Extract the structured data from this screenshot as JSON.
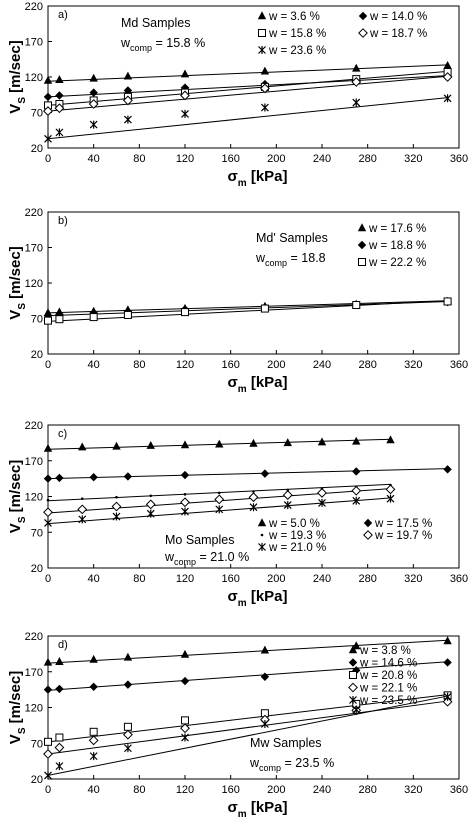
{
  "chart_data": [
    {
      "type": "line",
      "panel_label": "a)",
      "annotation": "Md Samples",
      "wcomp": {
        "base": "w",
        "sub": "comp",
        "rest": " = 15.8 %"
      },
      "xlabel": {
        "base": "σ",
        "sub": "m",
        "rest": " [kPa]"
      },
      "ylabel": {
        "base": "V",
        "sub": "S",
        "rest": " [m/sec]"
      },
      "xlim": [
        0,
        360
      ],
      "ylim": [
        20,
        220
      ],
      "xticks": [
        0,
        40,
        80,
        120,
        160,
        200,
        240,
        280,
        320,
        360
      ],
      "yticks": [
        20,
        70,
        120,
        170,
        220
      ],
      "grid": false,
      "legend": [
        {
          "label": "w = 3.6 %",
          "series": 0,
          "col": 0,
          "row": 0
        },
        {
          "label": "w = 14.0 %",
          "series": 1,
          "col": 1,
          "row": 0
        },
        {
          "label": "w = 15.8 %",
          "series": 2,
          "col": 0,
          "row": 1
        },
        {
          "label": "w = 18.7 %",
          "series": 3,
          "col": 1,
          "row": 1
        },
        {
          "label": "w = 23.6 %",
          "series": 4,
          "col": 0,
          "row": 2
        }
      ],
      "series": [
        {
          "name": "w = 3.6 %",
          "marker": "triangle",
          "x": [
            0,
            10,
            40,
            70,
            120,
            190,
            270,
            350
          ],
          "y": [
            115,
            116,
            118,
            121,
            124,
            128,
            132,
            136
          ],
          "fit_y": [
            114,
            137
          ]
        },
        {
          "name": "w = 14.0 %",
          "marker": "diamond",
          "x": [
            0,
            10,
            40,
            70,
            120,
            190,
            270,
            350
          ],
          "y": [
            92,
            94,
            98,
            101,
            105,
            110,
            116,
            121
          ],
          "fit_y": [
            92,
            122
          ]
        },
        {
          "name": "w = 15.8 %",
          "marker": "square",
          "x": [
            0,
            10,
            40,
            70,
            120,
            190,
            270,
            350
          ],
          "y": [
            80,
            82,
            87,
            92,
            98,
            106,
            117,
            127
          ],
          "fit_y": [
            80,
            128
          ]
        },
        {
          "name": "w = 18.7 %",
          "marker": "diamond-open",
          "x": [
            0,
            10,
            40,
            70,
            120,
            190,
            270,
            350
          ],
          "y": [
            72,
            76,
            82,
            87,
            94,
            104,
            113,
            120
          ],
          "fit_y": [
            72,
            121
          ]
        },
        {
          "name": "w = 23.6 %",
          "marker": "star",
          "x": [
            0,
            10,
            40,
            70,
            120,
            190,
            270,
            350
          ],
          "y": [
            33,
            42,
            53,
            60,
            68,
            77,
            84,
            90
          ],
          "fit_y": [
            33,
            91
          ]
        }
      ]
    },
    {
      "type": "line",
      "panel_label": "b)",
      "annotation": "Md' Samples",
      "wcomp": {
        "base": "w",
        "sub": "comp",
        "rest": " = 18.8"
      },
      "xlabel": {
        "base": "σ",
        "sub": "m",
        "rest": " [kPa]"
      },
      "ylabel": {
        "base": "V",
        "sub": "S",
        "rest": " [m/sec]"
      },
      "xlim": [
        0,
        360
      ],
      "ylim": [
        20,
        220
      ],
      "xticks": [
        0,
        40,
        80,
        120,
        160,
        200,
        240,
        280,
        320,
        360
      ],
      "yticks": [
        20,
        70,
        120,
        170,
        220
      ],
      "grid": false,
      "legend": [
        {
          "label": "w = 17.6 %",
          "series": 0,
          "col": 0,
          "row": 0
        },
        {
          "label": "w = 18.8 %",
          "series": 1,
          "col": 0,
          "row": 1
        },
        {
          "label": "w = 22.2 %",
          "series": 2,
          "col": 0,
          "row": 2
        }
      ],
      "series": [
        {
          "name": "w = 17.6 %",
          "marker": "triangle",
          "x": [
            0,
            10,
            40,
            70,
            120,
            190,
            270,
            350
          ],
          "y": [
            78,
            79,
            80,
            82,
            84,
            87,
            90,
            94
          ],
          "fit_y": [
            78,
            95
          ]
        },
        {
          "name": "w = 18.8 %",
          "marker": "diamond",
          "x": [
            0,
            10,
            40,
            70,
            120,
            190,
            270,
            350
          ],
          "y": [
            74,
            76,
            78,
            80,
            83,
            86,
            89,
            93
          ],
          "fit_y": [
            74,
            94
          ]
        },
        {
          "name": "w = 22.2 %",
          "marker": "square",
          "x": [
            0,
            10,
            40,
            70,
            120,
            190,
            270,
            350
          ],
          "y": [
            67,
            69,
            72,
            75,
            79,
            84,
            89,
            94
          ],
          "fit_y": [
            66,
            95
          ]
        }
      ]
    },
    {
      "type": "line",
      "panel_label": "c)",
      "annotation": "Mo Samples",
      "wcomp": {
        "base": "w",
        "sub": "comp",
        "rest": " = 21.0 %"
      },
      "xlabel": {
        "base": "σ",
        "sub": "m",
        "rest": " [kPa]"
      },
      "ylabel": {
        "base": "V",
        "sub": "S",
        "rest": " [m/sec]"
      },
      "xlim": [
        0,
        360
      ],
      "ylim": [
        20,
        220
      ],
      "xticks": [
        0,
        40,
        80,
        120,
        160,
        200,
        240,
        280,
        320,
        360
      ],
      "yticks": [
        20,
        70,
        120,
        170,
        220
      ],
      "grid": false,
      "legend": [
        {
          "label": "w = 5.0 %",
          "series": 0,
          "col": 0,
          "row": 0
        },
        {
          "label": "w = 17.5 %",
          "series": 1,
          "col": 1,
          "row": 0
        },
        {
          "label": "w = 19.3 %",
          "series": 2,
          "col": 0,
          "row": 1
        },
        {
          "label": "w = 19.7 %",
          "series": 3,
          "col": 1,
          "row": 1
        },
        {
          "label": "w = 21.0 %",
          "series": 4,
          "col": 0,
          "row": 2
        }
      ],
      "series": [
        {
          "name": "w = 5.0 %",
          "marker": "triangle",
          "x": [
            0,
            30,
            60,
            90,
            120,
            150,
            180,
            210,
            240,
            270,
            300
          ],
          "y": [
            187,
            189,
            190,
            191,
            192,
            193,
            194,
            195,
            196,
            197,
            199
          ],
          "fit_y": [
            186,
            200
          ]
        },
        {
          "name": "w = 17.5 %",
          "marker": "diamond",
          "x": [
            0,
            10,
            40,
            70,
            120,
            190,
            270,
            350
          ],
          "y": [
            145,
            146,
            147,
            148,
            150,
            152,
            155,
            158
          ],
          "fit_y": [
            145,
            159
          ]
        },
        {
          "name": "w = 19.3 %",
          "marker": "dot",
          "x": [
            0,
            30,
            60,
            90,
            120,
            150,
            180,
            210,
            240,
            270,
            300
          ],
          "y": [
            115,
            117,
            119,
            121,
            123,
            125,
            127,
            129,
            131,
            133,
            136
          ],
          "fit_y": [
            114,
            137
          ]
        },
        {
          "name": "w = 19.7 %",
          "marker": "diamond-open",
          "x": [
            0,
            30,
            60,
            90,
            120,
            150,
            180,
            210,
            240,
            270,
            300
          ],
          "y": [
            98,
            102,
            106,
            109,
            112,
            116,
            119,
            122,
            125,
            128,
            130
          ],
          "fit_y": [
            97,
            131
          ]
        },
        {
          "name": "w = 21.0 %",
          "marker": "star",
          "x": [
            0,
            30,
            60,
            90,
            120,
            150,
            180,
            210,
            240,
            270,
            300
          ],
          "y": [
            83,
            88,
            92,
            96,
            99,
            102,
            105,
            108,
            111,
            114,
            117
          ],
          "fit_y": [
            82,
            118
          ]
        }
      ]
    },
    {
      "type": "line",
      "panel_label": "d)",
      "annotation": "Mw Samples",
      "wcomp": {
        "base": "w",
        "sub": "comp",
        "rest": " = 23.5 %"
      },
      "xlabel": {
        "base": "σ",
        "sub": "m",
        "rest": " [kPa]"
      },
      "ylabel": {
        "base": "V",
        "sub": "S",
        "rest": " [m/sec]"
      },
      "xlim": [
        0,
        360
      ],
      "ylim": [
        20,
        220
      ],
      "xticks": [
        0,
        40,
        80,
        120,
        160,
        200,
        240,
        280,
        320,
        360
      ],
      "yticks": [
        20,
        70,
        120,
        170,
        220
      ],
      "grid": false,
      "legend": [
        {
          "label": "w = 3.8 %",
          "series": 0,
          "col": 0,
          "row": 0
        },
        {
          "label": "w = 14.6 %",
          "series": 1,
          "col": 0,
          "row": 1
        },
        {
          "label": "w = 20.8 %",
          "series": 2,
          "col": 0,
          "row": 2
        },
        {
          "label": "w = 22.1 %",
          "series": 3,
          "col": 0,
          "row": 3
        },
        {
          "label": "w = 23.5 %",
          "series": 4,
          "col": 0,
          "row": 4
        }
      ],
      "series": [
        {
          "name": "w = 3.8 %",
          "marker": "triangle",
          "x": [
            0,
            10,
            40,
            70,
            120,
            190,
            270,
            350
          ],
          "y": [
            183,
            184,
            187,
            190,
            194,
            200,
            206,
            213
          ],
          "fit_y": [
            182,
            214
          ]
        },
        {
          "name": "w = 14.6 %",
          "marker": "diamond",
          "x": [
            0,
            10,
            40,
            70,
            120,
            190,
            270,
            350
          ],
          "y": [
            145,
            146,
            149,
            152,
            157,
            163,
            172,
            183
          ],
          "fit_y": [
            144,
            184
          ]
        },
        {
          "name": "w = 20.8 %",
          "marker": "square",
          "x": [
            0,
            10,
            40,
            70,
            120,
            190,
            270,
            350
          ],
          "y": [
            72,
            78,
            86,
            93,
            102,
            112,
            125,
            137
          ],
          "fit_y": [
            72,
            138
          ]
        },
        {
          "name": "w = 22.1 %",
          "marker": "diamond-open",
          "x": [
            0,
            10,
            40,
            70,
            120,
            190,
            270,
            350
          ],
          "y": [
            55,
            64,
            74,
            82,
            91,
            103,
            116,
            128
          ],
          "fit_y": [
            55,
            129
          ]
        },
        {
          "name": "w = 23.5 %",
          "marker": "star",
          "x": [
            0,
            10,
            40,
            70,
            120,
            190,
            270,
            350
          ],
          "y": [
            25,
            38,
            52,
            63,
            78,
            97,
            117,
            135
          ],
          "fit_y": [
            25,
            136
          ]
        }
      ]
    }
  ]
}
